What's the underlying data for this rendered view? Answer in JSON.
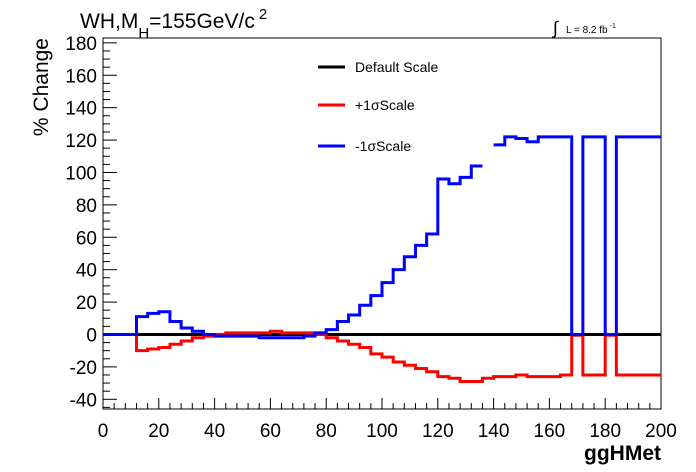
{
  "chart_data": {
    "type": "line",
    "title_main": "WH,M",
    "title_sub": "H",
    "title_rest": "=155GeV/c",
    "title_sup": "2",
    "lumi_main": "L = 8.2 fb",
    "lumi_sup": "-1",
    "lumi_integral": "∫",
    "xlabel": "ggHMet",
    "ylabel": "% Change",
    "xlim": [
      0,
      200
    ],
    "ylim": [
      -46,
      183
    ],
    "xticks": [
      0,
      20,
      40,
      60,
      80,
      100,
      120,
      140,
      160,
      180,
      200
    ],
    "yticks": [
      -40,
      -20,
      0,
      20,
      40,
      60,
      80,
      100,
      120,
      140,
      160,
      180
    ],
    "bin_width": 4,
    "series": [
      {
        "name": "Default Scale",
        "color": "#000000",
        "values": [
          0,
          0,
          0,
          0,
          0,
          0,
          0,
          0,
          0,
          0,
          0,
          0,
          0,
          0,
          0,
          0,
          0,
          0,
          0,
          0,
          0,
          0,
          0,
          0,
          0,
          0,
          0,
          0,
          0,
          0,
          0,
          0,
          0,
          0,
          0,
          0,
          0,
          0,
          0,
          0,
          0,
          0,
          0,
          0,
          0,
          0,
          0,
          0,
          0,
          0
        ]
      },
      {
        "name": "+1σScale",
        "color": "#ff0000",
        "values": [
          0,
          0,
          0,
          -10,
          -9,
          -8,
          -6,
          -4,
          -2,
          -1,
          0,
          1,
          1,
          1,
          1,
          2,
          1,
          1,
          1,
          0,
          -2,
          -4,
          -6,
          -8,
          -12,
          -14,
          -17,
          -19,
          -21,
          -23,
          -26,
          -27,
          -29,
          -29,
          -27,
          -26,
          -26,
          -25,
          -26,
          -26,
          -26,
          -25,
          -0.5,
          -25,
          -25,
          -0.5,
          -25,
          -25,
          -25,
          -25
        ]
      },
      {
        "name": "-1σScale",
        "color": "#0000ff",
        "values": [
          0,
          0,
          0,
          11,
          13,
          14,
          8,
          4,
          2,
          0,
          -1,
          -1,
          -1,
          -1,
          -2,
          -2,
          -2,
          -2,
          -1,
          1,
          3,
          8,
          12,
          18,
          24,
          32,
          40,
          48,
          55,
          62,
          96,
          93,
          97,
          104,
          null,
          117,
          122,
          121,
          119,
          122,
          122,
          122,
          0,
          122,
          122,
          0,
          122,
          122,
          122,
          122
        ]
      }
    ]
  }
}
